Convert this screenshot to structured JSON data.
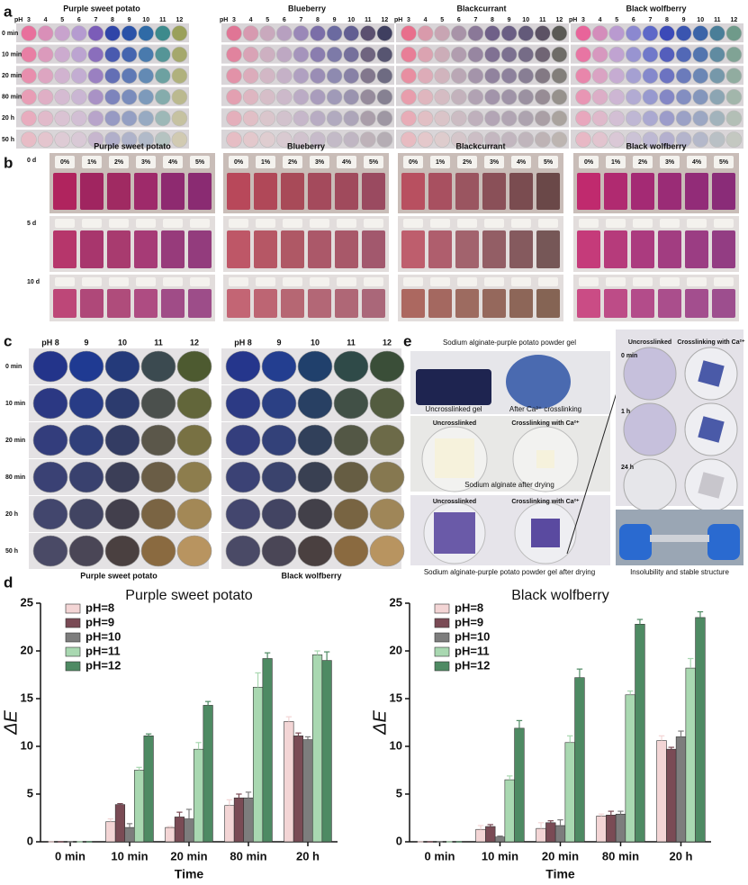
{
  "panel_a": {
    "label": "a",
    "titles": [
      "Purple sweet potato",
      "Blueberry",
      "Blackcurrant",
      "Black wolfberry"
    ],
    "ph_label": "pH",
    "ph_values": [
      3,
      4,
      5,
      6,
      7,
      8,
      9,
      10,
      11,
      12
    ],
    "rows": [
      "0 min",
      "10 min",
      "20 min",
      "80 min",
      "20 h",
      "50 h"
    ]
  },
  "panel_b": {
    "label": "b",
    "titles": [
      "Purple sweet potato",
      "Blueberry",
      "Blackcurrant",
      "Black wolfberry"
    ],
    "rows": [
      "0 d",
      "5 d",
      "10 d"
    ],
    "concentrations": [
      "0%",
      "1%",
      "2%",
      "3%",
      "4%",
      "5%"
    ]
  },
  "panel_c": {
    "label": "c",
    "ph_header": [
      "pH 8",
      "9",
      "10",
      "11",
      "12"
    ],
    "rows": [
      "0 min",
      "10 min",
      "20 min",
      "80 min",
      "20 h",
      "50 h"
    ],
    "captions": [
      "Purple sweet potato",
      "Black wolfberry"
    ]
  },
  "panel_e": {
    "label": "e",
    "title": "Sodium alginate-purple potato powder gel",
    "gel_labels": [
      "Uncrosslinked gel",
      "After Ca²⁺ crosslinking"
    ],
    "dry_labels": [
      "Uncrosslinked",
      "Crosslinking with Ca²⁺"
    ],
    "dry_caption": "Sodium alginate after drying",
    "powder_labels": [
      "Uncrosslinked",
      "Crosslinking with Ca²⁺"
    ],
    "powder_caption": "Sodium alginate-purple potato powder gel after drying",
    "soak_labels": [
      "Uncrosslinked",
      "Crosslinking with Ca²⁺"
    ],
    "soak_times": [
      "0 min",
      "1 h",
      "24 h"
    ],
    "soak_caption": "Insolubility and stable structure"
  },
  "panel_d": {
    "label": "d"
  },
  "chart_data": [
    {
      "type": "bar",
      "title": "Purple sweet potato",
      "y_label": "ΔE",
      "x_label": "Time",
      "categories": [
        "0 min",
        "10 min",
        "20 min",
        "80 min",
        "20 h"
      ],
      "ylim": [
        0,
        25
      ],
      "yticks": [
        0,
        5,
        10,
        15,
        20,
        25
      ],
      "series": [
        {
          "name": "pH=8",
          "color": "#f3d5d5",
          "values": [
            0,
            2.1,
            1.5,
            3.8,
            12.6
          ],
          "errors": [
            0,
            0.3,
            0.1,
            0.6,
            0.5
          ]
        },
        {
          "name": "pH=9",
          "color": "#7a4b55",
          "values": [
            0,
            3.9,
            2.6,
            4.6,
            11.1
          ],
          "errors": [
            0,
            0.1,
            0.5,
            0.4,
            0.3
          ]
        },
        {
          "name": "pH=10",
          "color": "#7d7d7d",
          "values": [
            0,
            1.5,
            2.4,
            4.6,
            10.7
          ],
          "errors": [
            0,
            0.4,
            1.0,
            0.6,
            0.3
          ]
        },
        {
          "name": "pH=11",
          "color": "#a9d8b1",
          "values": [
            0,
            7.5,
            9.7,
            16.2,
            19.6
          ],
          "errors": [
            0,
            0.3,
            0.7,
            1.5,
            0.4
          ]
        },
        {
          "name": "pH=12",
          "color": "#4e8a63",
          "values": [
            0,
            11.1,
            14.3,
            19.2,
            19.0
          ],
          "errors": [
            0,
            0.2,
            0.4,
            0.6,
            0.9
          ]
        }
      ]
    },
    {
      "type": "bar",
      "title": "Black wolfberry",
      "y_label": "ΔE",
      "x_label": "Time",
      "categories": [
        "0 min",
        "10 min",
        "20 min",
        "80 min",
        "20 h"
      ],
      "ylim": [
        0,
        25
      ],
      "yticks": [
        0,
        5,
        10,
        15,
        20,
        25
      ],
      "series": [
        {
          "name": "pH=8",
          "color": "#f3d5d5",
          "values": [
            0,
            1.3,
            1.4,
            2.7,
            10.6
          ],
          "errors": [
            0,
            0.4,
            0.6,
            0.2,
            0.5
          ]
        },
        {
          "name": "pH=9",
          "color": "#7a4b55",
          "values": [
            0,
            1.6,
            2.0,
            2.8,
            9.7
          ],
          "errors": [
            0,
            0.2,
            0.2,
            0.4,
            0.2
          ]
        },
        {
          "name": "pH=10",
          "color": "#7d7d7d",
          "values": [
            0,
            0.5,
            1.7,
            2.9,
            11.0
          ],
          "errors": [
            0,
            0.1,
            0.6,
            0.3,
            0.6
          ]
        },
        {
          "name": "pH=11",
          "color": "#a9d8b1",
          "values": [
            0,
            6.5,
            10.4,
            15.4,
            18.2
          ],
          "errors": [
            0,
            0.4,
            0.7,
            0.4,
            1.0
          ]
        },
        {
          "name": "pH=12",
          "color": "#4e8a63",
          "values": [
            0,
            11.9,
            17.2,
            22.8,
            23.5
          ],
          "errors": [
            0,
            0.8,
            0.9,
            0.5,
            0.6
          ]
        }
      ]
    }
  ]
}
